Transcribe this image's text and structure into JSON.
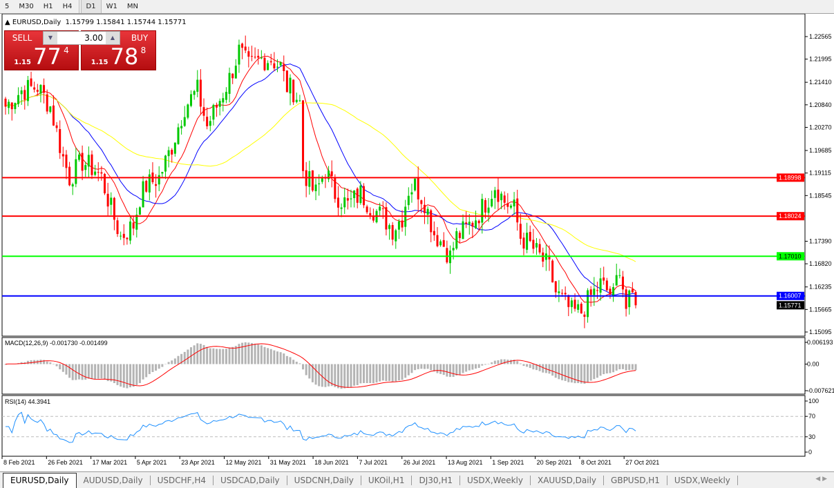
{
  "toolbar": {
    "timeframes": [
      "5",
      "M30",
      "H1",
      "H4",
      "D1",
      "W1",
      "MN"
    ],
    "active": "D1"
  },
  "symbol_header": {
    "title": "EURUSD,Daily",
    "ohlc": "1.15799 1.15841 1.15744 1.15771"
  },
  "trade_panel": {
    "sell_label": "SELL",
    "buy_label": "BUY",
    "lot": "3.00",
    "sell_prefix": "1.15",
    "sell_big": "77",
    "sell_pip": "4",
    "buy_prefix": "1.15",
    "buy_big": "78",
    "buy_pip": "8"
  },
  "price_axis": [
    "1.22565",
    "1.21995",
    "1.21410",
    "1.20840",
    "1.20270",
    "1.19685",
    "1.19115",
    "1.18545",
    "1.17390",
    "1.16820",
    "1.16235",
    "1.15665",
    "1.15095"
  ],
  "levels": [
    {
      "price": "1.18998",
      "color": "#ff0000"
    },
    {
      "price": "1.18024",
      "color": "#ff0000"
    },
    {
      "price": "1.17010",
      "color": "#00ff00"
    },
    {
      "price": "1.16007",
      "color": "#0000ff"
    }
  ],
  "current_price": "1.15771",
  "macd": {
    "label": "MACD(12,26,9) -0.001730 -0.001499",
    "axis": [
      "0.006193",
      "0.00",
      "-0.007621"
    ]
  },
  "rsi": {
    "label": "RSI(14) 44.3941",
    "axis": [
      "100",
      "70",
      "30",
      "0"
    ]
  },
  "date_axis": [
    "8 Feb 2021",
    "26 Feb 2021",
    "17 Mar 2021",
    "5 Apr 2021",
    "23 Apr 2021",
    "12 May 2021",
    "31 May 2021",
    "18 Jun 2021",
    "7 Jul 2021",
    "26 Jul 2021",
    "13 Aug 2021",
    "1 Sep 2021",
    "20 Sep 2021",
    "8 Oct 2021",
    "27 Oct 2021"
  ],
  "tabs": [
    "EURUSD,Daily",
    "AUDUSD,Daily",
    "USDCHF,H4",
    "USDCAD,Daily",
    "USDCNH,Daily",
    "UKOil,H1",
    "DJ30,H1",
    "USDX,Weekly",
    "XAUUSD,Daily",
    "GBPUSD,H1",
    "USDX,Weekly"
  ],
  "colors": {
    "bull": "#00c800",
    "bear": "#ff0000",
    "ma_fast": "#ff0000",
    "ma_mid": "#0000ff",
    "ma_slow": "#ffff00",
    "rsi": "#1e90ff",
    "macd_hist": "#b4b4b4"
  },
  "chart_data": {
    "type": "candlestick",
    "symbol": "EURUSD",
    "timeframe": "Daily",
    "ylim": [
      1.15095,
      1.22565
    ],
    "close_path": [
      [
        0,
        1.208
      ],
      [
        5,
        1.212
      ],
      [
        10,
        1.213
      ],
      [
        14,
        1.208
      ],
      [
        18,
        1.195
      ],
      [
        20,
        1.19
      ],
      [
        24,
        1.194
      ],
      [
        28,
        1.192
      ],
      [
        30,
        1.19
      ],
      [
        33,
        1.182
      ],
      [
        36,
        1.175
      ],
      [
        40,
        1.178
      ],
      [
        42,
        1.185
      ],
      [
        44,
        1.188
      ],
      [
        48,
        1.19
      ],
      [
        52,
        1.198
      ],
      [
        56,
        1.208
      ],
      [
        60,
        1.212
      ],
      [
        63,
        1.203
      ],
      [
        66,
        1.208
      ],
      [
        70,
        1.215
      ],
      [
        73,
        1.222
      ],
      [
        76,
        1.218
      ],
      [
        80,
        1.22
      ],
      [
        83,
        1.22
      ],
      [
        86,
        1.218
      ],
      [
        88,
        1.213
      ],
      [
        90,
        1.212
      ],
      [
        92,
        1.209
      ],
      [
        93,
        1.192
      ],
      [
        96,
        1.187
      ],
      [
        97,
        1.186
      ],
      [
        100,
        1.192
      ],
      [
        103,
        1.186
      ],
      [
        107,
        1.183
      ],
      [
        111,
        1.186
      ],
      [
        115,
        1.182
      ],
      [
        118,
        1.18
      ],
      [
        121,
        1.177
      ],
      [
        124,
        1.18
      ],
      [
        126,
        1.187
      ],
      [
        128,
        1.188
      ],
      [
        131,
        1.184
      ],
      [
        134,
        1.176
      ],
      [
        137,
        1.173
      ],
      [
        139,
        1.17
      ],
      [
        141,
        1.175
      ],
      [
        144,
        1.177
      ],
      [
        148,
        1.181
      ],
      [
        151,
        1.185
      ],
      [
        153,
        1.188
      ],
      [
        156,
        1.184
      ],
      [
        159,
        1.182
      ],
      [
        161,
        1.175
      ],
      [
        164,
        1.173
      ],
      [
        167,
        1.17
      ],
      [
        170,
        1.167
      ],
      [
        172,
        1.161
      ],
      [
        175,
        1.158
      ],
      [
        177,
        1.156
      ],
      [
        180,
        1.156
      ],
      [
        183,
        1.16
      ],
      [
        186,
        1.163
      ],
      [
        190,
        1.16
      ],
      [
        192,
        1.168
      ],
      [
        194,
        1.157
      ],
      [
        196,
        1.16
      ],
      [
        197,
        1.15771
      ]
    ]
  }
}
